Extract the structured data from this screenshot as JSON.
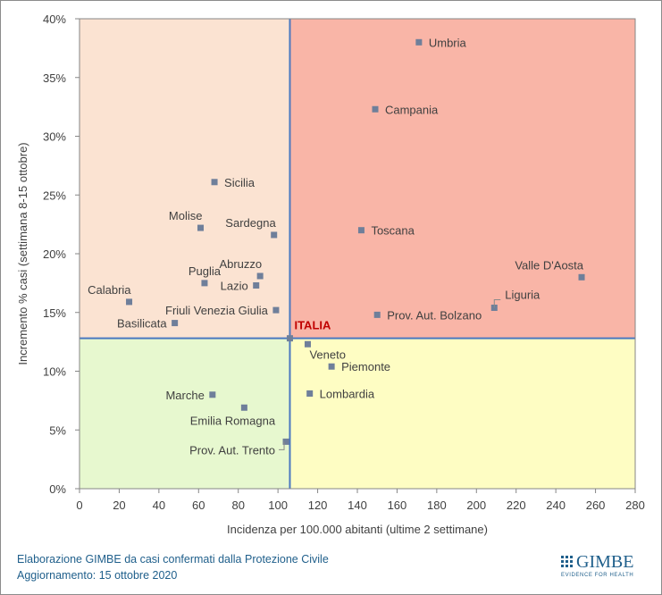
{
  "chart_data": {
    "type": "scatter",
    "xlabel": "Incidenza per 100.000 abitanti (ultime 2 settimane)",
    "ylabel": "Incremento % casi (settimana 8-15 ottobre)",
    "xlim": [
      0,
      280
    ],
    "ylim": [
      0,
      40
    ],
    "x_ticks": [
      0,
      20,
      40,
      60,
      80,
      100,
      120,
      140,
      160,
      180,
      200,
      220,
      240,
      260,
      280
    ],
    "y_ticks": [
      {
        "value": 0,
        "label": "0%"
      },
      {
        "value": 5,
        "label": "5%"
      },
      {
        "value": 10,
        "label": "10%"
      },
      {
        "value": 15,
        "label": "15%"
      },
      {
        "value": 20,
        "label": "20%"
      },
      {
        "value": 25,
        "label": "25%"
      },
      {
        "value": 30,
        "label": "30%"
      },
      {
        "value": 35,
        "label": "35%"
      },
      {
        "value": 40,
        "label": "40%"
      }
    ],
    "grid": false,
    "reference": {
      "label": "ITALIA",
      "x": 106,
      "y": 12.8
    },
    "quadrant_colors": {
      "top_left": "#fbe3d2",
      "top_right": "#f9b5a7",
      "bottom_left": "#e7f8cf",
      "bottom_right": "#fefdc3"
    },
    "marker_color": "#6f7f9a",
    "reference_line_color": "#4a78c0",
    "points": [
      {
        "label": "Umbria",
        "x": 171,
        "y": 38.0,
        "anchor": "right"
      },
      {
        "label": "Campania",
        "x": 149,
        "y": 32.3,
        "anchor": "right"
      },
      {
        "label": "Sicilia",
        "x": 68,
        "y": 26.1,
        "anchor": "right"
      },
      {
        "label": "Molise",
        "x": 61,
        "y": 22.2,
        "anchor": "above-left"
      },
      {
        "label": "Sardegna",
        "x": 98,
        "y": 21.6,
        "anchor": "above-left"
      },
      {
        "label": "Toscana",
        "x": 142,
        "y": 22.0,
        "anchor": "right"
      },
      {
        "label": "Valle D'Aosta",
        "x": 253,
        "y": 18.0,
        "anchor": "above-left"
      },
      {
        "label": "Abruzzo",
        "x": 91,
        "y": 18.1,
        "anchor": "above-left"
      },
      {
        "label": "Puglia",
        "x": 63,
        "y": 17.5,
        "anchor": "above"
      },
      {
        "label": "Lazio",
        "x": 89,
        "y": 17.3,
        "anchor": "left"
      },
      {
        "label": "Liguria",
        "x": 209,
        "y": 15.4,
        "anchor": "callout-right"
      },
      {
        "label": "Calabria",
        "x": 25,
        "y": 15.9,
        "anchor": "above-left"
      },
      {
        "label": "Friuli Venezia Giulia",
        "x": 99,
        "y": 15.2,
        "anchor": "left"
      },
      {
        "label": "Prov. Aut. Bolzano",
        "x": 150,
        "y": 14.8,
        "anchor": "right"
      },
      {
        "label": "Basilicata",
        "x": 48,
        "y": 14.1,
        "anchor": "left"
      },
      {
        "label": "Veneto",
        "x": 115,
        "y": 12.3,
        "anchor": "below-right"
      },
      {
        "label": "Piemonte",
        "x": 127,
        "y": 10.4,
        "anchor": "right"
      },
      {
        "label": "Marche",
        "x": 67,
        "y": 8.0,
        "anchor": "left"
      },
      {
        "label": "Lombardia",
        "x": 116,
        "y": 8.1,
        "anchor": "right"
      },
      {
        "label": "Emilia Romagna",
        "x": 83,
        "y": 6.9,
        "anchor": "below"
      },
      {
        "label": "Prov. Aut. Trento",
        "x": 104,
        "y": 4.0,
        "anchor": "callout-left"
      }
    ]
  },
  "footer": {
    "line1": "Elaborazione GIMBE da casi confermati dalla Protezione Civile",
    "line2": "Aggiornamento: 15 ottobre 2020"
  },
  "logo": {
    "name": "GIMBE",
    "tagline": "EVIDENCE FOR HEALTH"
  }
}
